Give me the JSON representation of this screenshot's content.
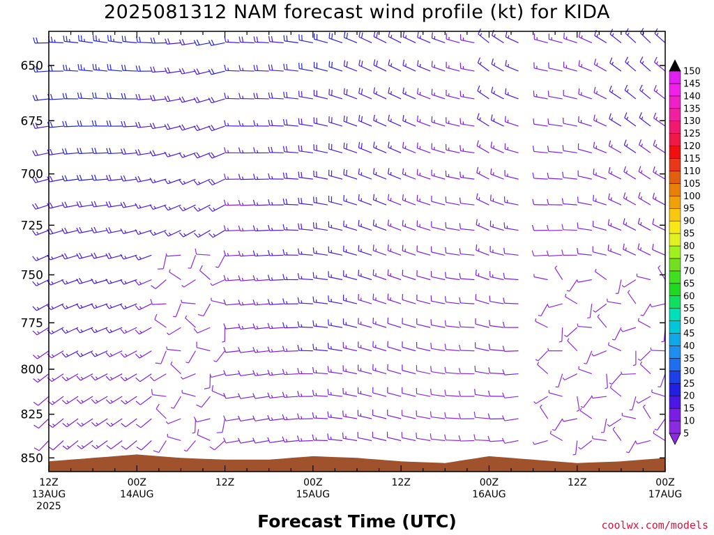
{
  "header": {
    "title": "2025081312 NAM forecast wind profile (kt) for KIDA",
    "x_title": "Forecast Time (UTC)",
    "credit": "coolwx.com/models"
  },
  "colors": {
    "terrain": "#a0522d",
    "frame": "#000000"
  },
  "chart_data": {
    "type": "wind-barb-profile",
    "title": "2025081312 NAM forecast wind profile (kt) for KIDA",
    "xlabel": "Forecast Time (UTC)",
    "ylabel": "",
    "y_ticks": [
      "650",
      "675",
      "700",
      "725",
      "750",
      "775",
      "800",
      "825",
      "850"
    ],
    "y_axis": {
      "type": "log-pressure",
      "range_hpa": [
        635,
        858
      ]
    },
    "x_ticks": [
      {
        "hour": 0,
        "line1": "12Z",
        "line2": "13AUG",
        "line3": "2025"
      },
      {
        "hour": 12,
        "line1": "00Z",
        "line2": "14AUG",
        "line3": ""
      },
      {
        "hour": 24,
        "line1": "12Z",
        "line2": "",
        "line3": ""
      },
      {
        "hour": 36,
        "line1": "00Z",
        "line2": "15AUG",
        "line3": ""
      },
      {
        "hour": 48,
        "line1": "12Z",
        "line2": "",
        "line3": ""
      },
      {
        "hour": 60,
        "line1": "00Z",
        "line2": "16AUG",
        "line3": ""
      },
      {
        "hour": 72,
        "line1": "12Z",
        "line2": "",
        "line3": ""
      },
      {
        "hour": 84,
        "line1": "00Z",
        "line2": "17AUG",
        "line3": ""
      }
    ],
    "x_range_hours": [
      0,
      84
    ],
    "forecast_interval_hours": 1,
    "surface_pressure_hpa": [
      {
        "hour": 0,
        "p": 852
      },
      {
        "hour": 6,
        "p": 850
      },
      {
        "hour": 12,
        "p": 848
      },
      {
        "hour": 18,
        "p": 850
      },
      {
        "hour": 24,
        "p": 851
      },
      {
        "hour": 30,
        "p": 851
      },
      {
        "hour": 36,
        "p": 849
      },
      {
        "hour": 42,
        "p": 850
      },
      {
        "hour": 48,
        "p": 852
      },
      {
        "hour": 54,
        "p": 853
      },
      {
        "hour": 60,
        "p": 849
      },
      {
        "hour": 66,
        "p": 851
      },
      {
        "hour": 72,
        "p": 853
      },
      {
        "hour": 78,
        "p": 852
      },
      {
        "hour": 84,
        "p": 850
      }
    ],
    "colorbar": {
      "levels": [
        5,
        10,
        15,
        20,
        25,
        30,
        35,
        40,
        45,
        50,
        55,
        60,
        65,
        70,
        75,
        80,
        85,
        90,
        95,
        100,
        105,
        110,
        115,
        120,
        125,
        130,
        135,
        140,
        145,
        150
      ],
      "colors": [
        "#8a2be2",
        "#7a1ee6",
        "#4b17e6",
        "#2020e0",
        "#1e40e8",
        "#1e6ef0",
        "#1e8ef0",
        "#10a8e8",
        "#00c8d8",
        "#00e0b8",
        "#10e060",
        "#20d820",
        "#40e020",
        "#70e020",
        "#a0f020",
        "#e0f020",
        "#f8e818",
        "#f8c810",
        "#f0a008",
        "#e88008",
        "#e06010",
        "#e83818",
        "#f01010",
        "#f01848",
        "#f01870",
        "#f020a0",
        "#f020c8",
        "#f020e8",
        "#e020f0",
        "#000000"
      ]
    },
    "wind_description": "Mostly westerly to west-northwesterly winds 10-25 kt at 650-725 hPa throughout; weaker variable winds 5-10 kt in the lower levels after 13Z 14AUG; brief gap near 06Z 16AUG."
  }
}
